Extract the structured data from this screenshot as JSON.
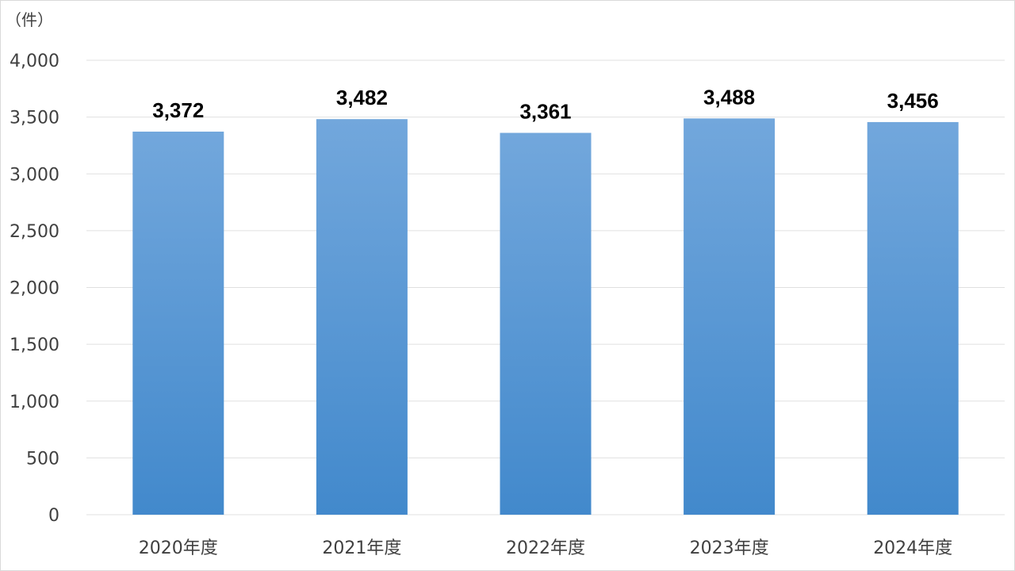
{
  "chart_data": {
    "type": "bar",
    "unit_label": "（件）",
    "categories": [
      "2020年度",
      "2021年度",
      "2022年度",
      "2023年度",
      "2024年度"
    ],
    "values": [
      3372,
      3482,
      3361,
      3488,
      3456
    ],
    "data_labels": [
      "3,372",
      "3,482",
      "3,361",
      "3,488",
      "3,456"
    ],
    "ylim": [
      0,
      4000
    ],
    "yticks": [
      0,
      500,
      1000,
      1500,
      2000,
      2500,
      3000,
      3500,
      4000
    ],
    "ytick_labels": [
      "0",
      "500",
      "1,000",
      "1,500",
      "2,000",
      "2,500",
      "3,000",
      "3,500",
      "4,000"
    ],
    "grid": true,
    "legend": "none",
    "bar_color_top": "#72a7dc",
    "bar_color_bottom": "#4289cc",
    "grid_color": "#e0e0e0"
  }
}
